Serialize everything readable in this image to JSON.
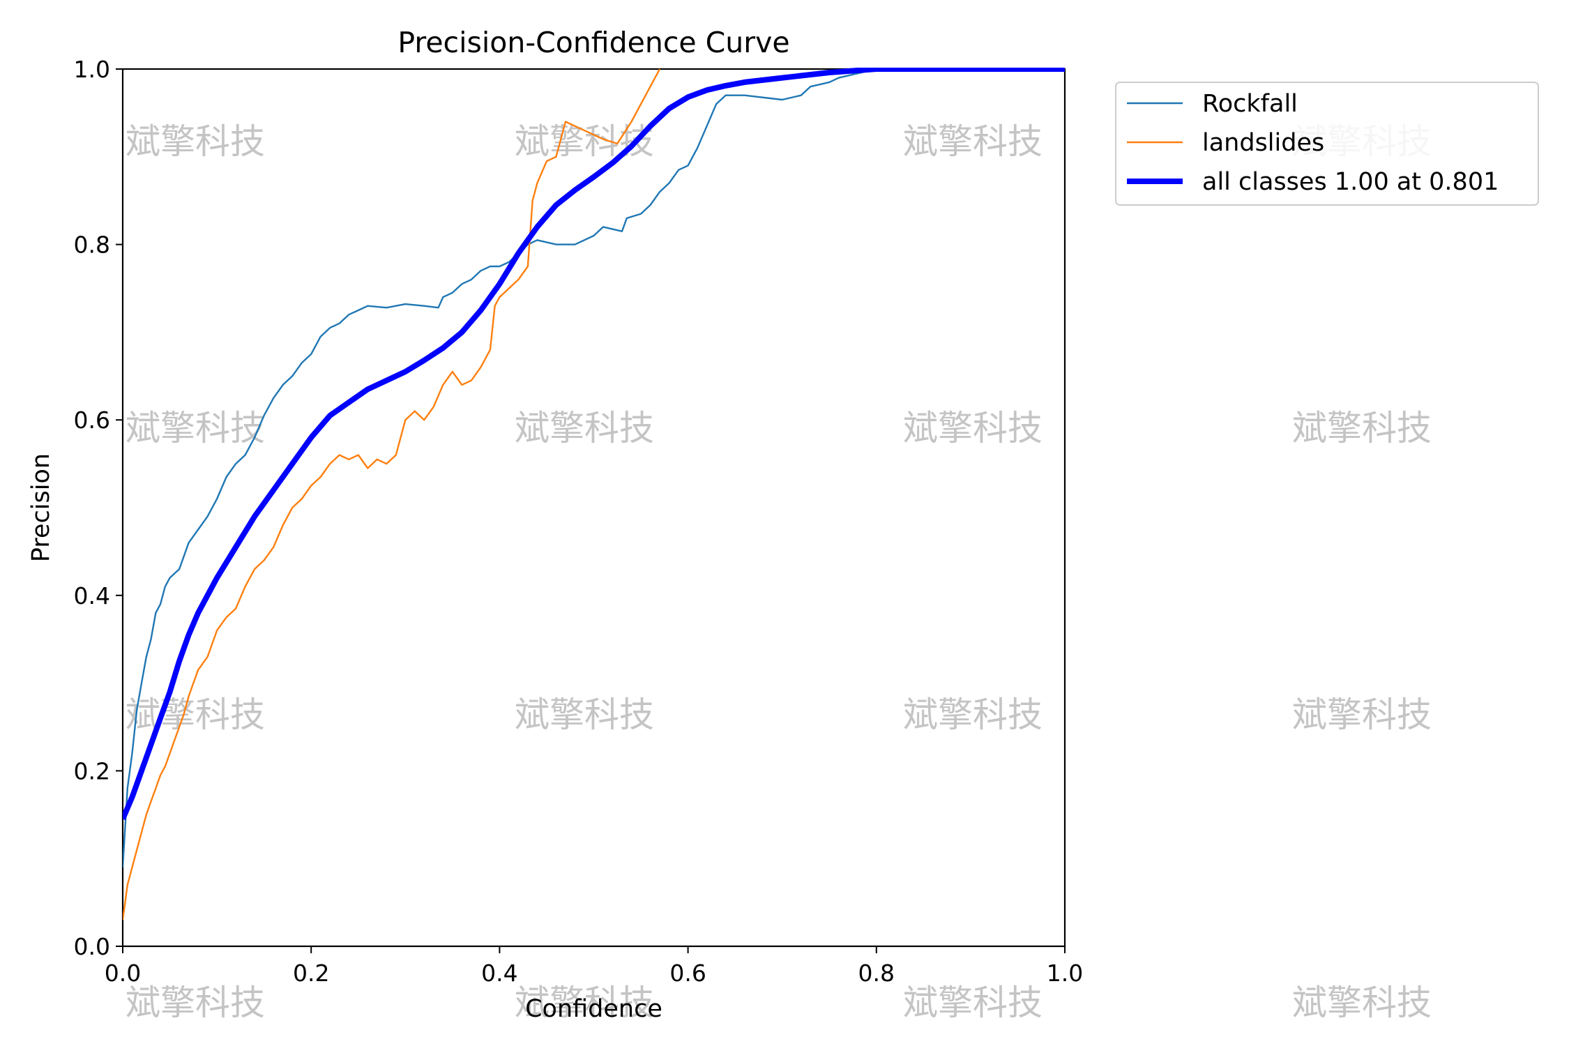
{
  "chart_data": {
    "type": "line",
    "title": "Precision-Confidence Curve",
    "xlabel": "Confidence",
    "ylabel": "Precision",
    "xlim": [
      0.0,
      1.0
    ],
    "ylim": [
      0.0,
      1.0
    ],
    "x_ticks": [
      "0.0",
      "0.2",
      "0.4",
      "0.6",
      "0.8",
      "1.0"
    ],
    "y_ticks": [
      "0.0",
      "0.2",
      "0.4",
      "0.6",
      "0.8",
      "1.0"
    ],
    "grid": false,
    "legend_position": "outside top-right",
    "watermark_text": "斌擎科技",
    "series": [
      {
        "name": "Rockfall",
        "color": "#1f77b4",
        "line_width": "thin",
        "points": [
          [
            0.0,
            0.09
          ],
          [
            0.005,
            0.18
          ],
          [
            0.01,
            0.22
          ],
          [
            0.015,
            0.27
          ],
          [
            0.02,
            0.3
          ],
          [
            0.025,
            0.33
          ],
          [
            0.03,
            0.35
          ],
          [
            0.035,
            0.38
          ],
          [
            0.04,
            0.39
          ],
          [
            0.045,
            0.41
          ],
          [
            0.05,
            0.42
          ],
          [
            0.06,
            0.43
          ],
          [
            0.07,
            0.46
          ],
          [
            0.08,
            0.475
          ],
          [
            0.09,
            0.49
          ],
          [
            0.1,
            0.51
          ],
          [
            0.11,
            0.535
          ],
          [
            0.12,
            0.55
          ],
          [
            0.13,
            0.56
          ],
          [
            0.14,
            0.58
          ],
          [
            0.15,
            0.605
          ],
          [
            0.16,
            0.625
          ],
          [
            0.17,
            0.64
          ],
          [
            0.18,
            0.65
          ],
          [
            0.19,
            0.665
          ],
          [
            0.2,
            0.675
          ],
          [
            0.21,
            0.695
          ],
          [
            0.22,
            0.705
          ],
          [
            0.23,
            0.71
          ],
          [
            0.24,
            0.72
          ],
          [
            0.25,
            0.725
          ],
          [
            0.26,
            0.73
          ],
          [
            0.28,
            0.728
          ],
          [
            0.3,
            0.732
          ],
          [
            0.32,
            0.73
          ],
          [
            0.335,
            0.728
          ],
          [
            0.34,
            0.74
          ],
          [
            0.35,
            0.745
          ],
          [
            0.36,
            0.755
          ],
          [
            0.37,
            0.76
          ],
          [
            0.38,
            0.77
          ],
          [
            0.39,
            0.775
          ],
          [
            0.4,
            0.775
          ],
          [
            0.41,
            0.78
          ],
          [
            0.42,
            0.79
          ],
          [
            0.43,
            0.8
          ],
          [
            0.44,
            0.805
          ],
          [
            0.46,
            0.8
          ],
          [
            0.48,
            0.8
          ],
          [
            0.5,
            0.81
          ],
          [
            0.51,
            0.82
          ],
          [
            0.53,
            0.815
          ],
          [
            0.535,
            0.83
          ],
          [
            0.55,
            0.835
          ],
          [
            0.56,
            0.845
          ],
          [
            0.57,
            0.86
          ],
          [
            0.58,
            0.87
          ],
          [
            0.59,
            0.885
          ],
          [
            0.6,
            0.89
          ],
          [
            0.61,
            0.91
          ],
          [
            0.62,
            0.935
          ],
          [
            0.63,
            0.96
          ],
          [
            0.64,
            0.97
          ],
          [
            0.66,
            0.97
          ],
          [
            0.7,
            0.965
          ],
          [
            0.72,
            0.97
          ],
          [
            0.73,
            0.98
          ],
          [
            0.75,
            0.985
          ],
          [
            0.76,
            0.99
          ],
          [
            0.8,
            1.0
          ],
          [
            1.0,
            1.0
          ]
        ]
      },
      {
        "name": "landslides",
        "color": "#ff7f0e",
        "line_width": "thin",
        "points": [
          [
            0.0,
            0.03
          ],
          [
            0.005,
            0.07
          ],
          [
            0.01,
            0.09
          ],
          [
            0.015,
            0.11
          ],
          [
            0.02,
            0.13
          ],
          [
            0.025,
            0.15
          ],
          [
            0.03,
            0.165
          ],
          [
            0.035,
            0.18
          ],
          [
            0.04,
            0.195
          ],
          [
            0.045,
            0.205
          ],
          [
            0.05,
            0.22
          ],
          [
            0.055,
            0.235
          ],
          [
            0.06,
            0.25
          ],
          [
            0.065,
            0.265
          ],
          [
            0.07,
            0.285
          ],
          [
            0.075,
            0.3
          ],
          [
            0.08,
            0.315
          ],
          [
            0.09,
            0.33
          ],
          [
            0.1,
            0.36
          ],
          [
            0.11,
            0.375
          ],
          [
            0.12,
            0.385
          ],
          [
            0.13,
            0.41
          ],
          [
            0.14,
            0.43
          ],
          [
            0.15,
            0.44
          ],
          [
            0.16,
            0.455
          ],
          [
            0.17,
            0.48
          ],
          [
            0.18,
            0.5
          ],
          [
            0.19,
            0.51
          ],
          [
            0.2,
            0.525
          ],
          [
            0.21,
            0.535
          ],
          [
            0.22,
            0.55
          ],
          [
            0.23,
            0.56
          ],
          [
            0.24,
            0.555
          ],
          [
            0.25,
            0.56
          ],
          [
            0.26,
            0.545
          ],
          [
            0.27,
            0.555
          ],
          [
            0.28,
            0.55
          ],
          [
            0.29,
            0.56
          ],
          [
            0.3,
            0.6
          ],
          [
            0.31,
            0.61
          ],
          [
            0.32,
            0.6
          ],
          [
            0.33,
            0.615
          ],
          [
            0.34,
            0.64
          ],
          [
            0.35,
            0.655
          ],
          [
            0.36,
            0.64
          ],
          [
            0.37,
            0.645
          ],
          [
            0.38,
            0.66
          ],
          [
            0.39,
            0.68
          ],
          [
            0.395,
            0.73
          ],
          [
            0.4,
            0.74
          ],
          [
            0.41,
            0.75
          ],
          [
            0.42,
            0.76
          ],
          [
            0.43,
            0.775
          ],
          [
            0.435,
            0.85
          ],
          [
            0.44,
            0.87
          ],
          [
            0.45,
            0.895
          ],
          [
            0.46,
            0.9
          ],
          [
            0.47,
            0.94
          ],
          [
            0.48,
            0.935
          ],
          [
            0.49,
            0.93
          ],
          [
            0.5,
            0.925
          ],
          [
            0.51,
            0.92
          ],
          [
            0.525,
            0.915
          ],
          [
            0.54,
            0.94
          ],
          [
            0.555,
            0.97
          ],
          [
            0.57,
            1.0
          ]
        ]
      },
      {
        "name": "all classes 1.00 at 0.801",
        "color": "#0000ff",
        "line_width": "thick",
        "points": [
          [
            0.0,
            0.145
          ],
          [
            0.01,
            0.17
          ],
          [
            0.02,
            0.2
          ],
          [
            0.03,
            0.23
          ],
          [
            0.04,
            0.26
          ],
          [
            0.05,
            0.29
          ],
          [
            0.06,
            0.325
          ],
          [
            0.07,
            0.355
          ],
          [
            0.08,
            0.38
          ],
          [
            0.09,
            0.4
          ],
          [
            0.1,
            0.42
          ],
          [
            0.12,
            0.455
          ],
          [
            0.14,
            0.49
          ],
          [
            0.16,
            0.52
          ],
          [
            0.18,
            0.55
          ],
          [
            0.2,
            0.58
          ],
          [
            0.22,
            0.605
          ],
          [
            0.24,
            0.62
          ],
          [
            0.26,
            0.635
          ],
          [
            0.28,
            0.645
          ],
          [
            0.3,
            0.655
          ],
          [
            0.32,
            0.668
          ],
          [
            0.34,
            0.682
          ],
          [
            0.36,
            0.7
          ],
          [
            0.38,
            0.725
          ],
          [
            0.4,
            0.755
          ],
          [
            0.42,
            0.79
          ],
          [
            0.44,
            0.82
          ],
          [
            0.46,
            0.845
          ],
          [
            0.48,
            0.862
          ],
          [
            0.5,
            0.877
          ],
          [
            0.52,
            0.893
          ],
          [
            0.54,
            0.912
          ],
          [
            0.56,
            0.935
          ],
          [
            0.58,
            0.955
          ],
          [
            0.6,
            0.968
          ],
          [
            0.62,
            0.976
          ],
          [
            0.64,
            0.981
          ],
          [
            0.66,
            0.985
          ],
          [
            0.7,
            0.99
          ],
          [
            0.75,
            0.996
          ],
          [
            0.8,
            1.0
          ],
          [
            0.85,
            1.0
          ],
          [
            1.0,
            1.0
          ]
        ]
      }
    ]
  }
}
